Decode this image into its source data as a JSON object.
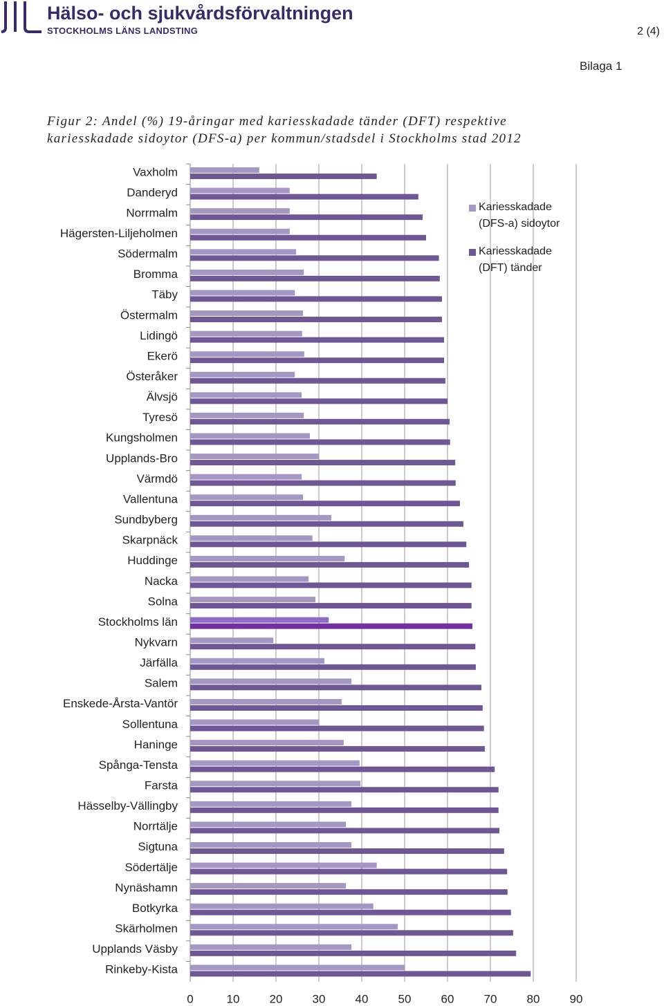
{
  "header": {
    "organization": "Hälso- och sjukvårdsförvaltningen",
    "suborganization": "STOCKHOLMS LÄNS LANDSTING",
    "page": "2 (4)",
    "attachment": "Bilaga 1"
  },
  "caption_lines": [
    "Figur 2: Andel (%) 19-åringar med kariesskadade tänder (DFT) respektive",
    "kariesskadade sidoytor (DFS-a) per kommun/stadsdel i Stockholms stad 2012"
  ],
  "chart_data": {
    "type": "bar",
    "orientation": "horizontal",
    "categories": [
      "Vaxholm",
      "Danderyd",
      "Norrmalm",
      "Hägersten-Liljeholmen",
      "Södermalm",
      "Bromma",
      "Täby",
      "Östermalm",
      "Lidingö",
      "Ekerö",
      "Österåker",
      "Älvsjö",
      "Tyresö",
      "Kungsholmen",
      "Upplands-Bro",
      "Värmdö",
      "Vallentuna",
      "Sundbyberg",
      "Skarpnäck",
      "Huddinge",
      "Nacka",
      "Solna",
      "Stockholms län",
      "Nykvarn",
      "Järfälla",
      "Salem",
      "Enskede-Årsta-Vantör",
      "Sollentuna",
      "Haninge",
      "Spånga-Tensta",
      "Farsta",
      "Hässelby-Vällingby",
      "Norrtälje",
      "Sigtuna",
      "Södertälje",
      "Nynäshamn",
      "Botkyrka",
      "Skärholmen",
      "Upplands Väsby",
      "Rinkeby-Kista"
    ],
    "series": [
      {
        "name": "Kariesskadade (DFS-a) sidoytor",
        "color": "#a597c4",
        "values": [
          16.1,
          23.2,
          23.2,
          23.2,
          24.7,
          26.5,
          24.4,
          26.3,
          26.1,
          26.6,
          24.4,
          26,
          26.5,
          27.9,
          30,
          26,
          26.3,
          32.9,
          28.5,
          36,
          27.6,
          29.2,
          32.3,
          19.4,
          31.3,
          37.6,
          35.3,
          30,
          35.8,
          39.5,
          39.7,
          37.6,
          36.3,
          37.6,
          43.5,
          36.3,
          42.7,
          48.4,
          37.6,
          50
        ]
      },
      {
        "name": "Kariesskadade (DFT) tänder",
        "color": "#6f5796",
        "values": [
          43.5,
          53.2,
          54.2,
          55,
          58,
          58.2,
          58.7,
          58.7,
          59.2,
          59.2,
          59.5,
          60,
          60.5,
          60.6,
          61.8,
          61.9,
          62.9,
          63.7,
          64.4,
          65,
          65.6,
          65.6,
          65.8,
          66.5,
          66.6,
          67.9,
          68.2,
          68.5,
          68.7,
          71,
          71.9,
          71.9,
          72.1,
          73.2,
          73.9,
          74,
          74.8,
          75.3,
          76,
          79.4
        ]
      }
    ],
    "highlight": {
      "category": "Stockholms län",
      "colors": [
        "#8e6cc4",
        "#7030a0"
      ]
    },
    "xlim": [
      0,
      90
    ],
    "xticks": [
      0,
      10,
      20,
      30,
      40,
      50,
      60,
      70,
      80,
      90
    ],
    "grid": true
  }
}
